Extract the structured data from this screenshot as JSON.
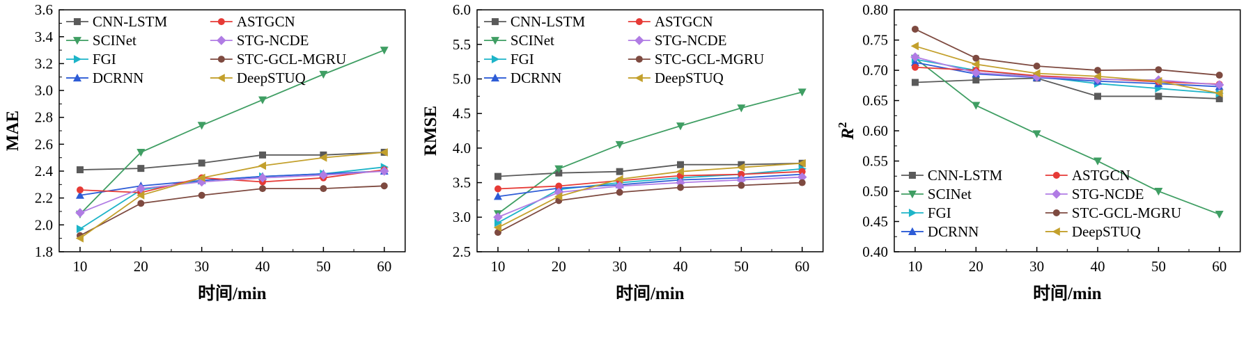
{
  "figure_name": "model-comparison-line-charts",
  "chart_data": [
    {
      "type": "line",
      "ylabel": "MAE",
      "xlabel": "时间/min",
      "x": [
        10,
        20,
        30,
        40,
        50,
        60
      ],
      "ylim": [
        1.8,
        3.6
      ],
      "yticks": [
        "1.8",
        "2.0",
        "2.2",
        "2.4",
        "2.6",
        "2.8",
        "3.0",
        "3.2",
        "3.4",
        "3.6"
      ],
      "grid": false,
      "legend": {
        "position": "top-left",
        "columns": 2
      },
      "series": [
        {
          "name": "CNN-LSTM",
          "color": "#5a5a5a",
          "marker": "square",
          "values": [
            2.41,
            2.42,
            2.46,
            2.52,
            2.52,
            2.54
          ]
        },
        {
          "name": "SCINet",
          "color": "#3f9e63",
          "marker": "triangle-down",
          "values": [
            2.08,
            2.54,
            2.74,
            2.93,
            3.12,
            3.3
          ]
        },
        {
          "name": "FGI",
          "color": "#1db4c8",
          "marker": "triangle-right",
          "values": [
            1.97,
            2.26,
            2.33,
            2.36,
            2.38,
            2.43
          ]
        },
        {
          "name": "DCRNN",
          "color": "#2d5cd6",
          "marker": "triangle-up",
          "values": [
            2.22,
            2.29,
            2.33,
            2.36,
            2.38,
            2.4
          ]
        },
        {
          "name": "ASTGCN",
          "color": "#e63a36",
          "marker": "circle",
          "values": [
            2.26,
            2.24,
            2.35,
            2.32,
            2.35,
            2.41
          ]
        },
        {
          "name": "STG-NCDE",
          "color": "#b07ce4",
          "marker": "diamond",
          "values": [
            2.09,
            2.27,
            2.32,
            2.35,
            2.37,
            2.4
          ]
        },
        {
          "name": "STC-GCL-MGRU",
          "color": "#7e4a40",
          "marker": "circle",
          "values": [
            1.92,
            2.16,
            2.22,
            2.27,
            2.27,
            2.29
          ]
        },
        {
          "name": "DeepSTUQ",
          "color": "#c3a02c",
          "marker": "triangle-left",
          "values": [
            1.9,
            2.22,
            2.35,
            2.44,
            2.5,
            2.54
          ]
        }
      ]
    },
    {
      "type": "line",
      "ylabel": "RMSE",
      "xlabel": "时间/min",
      "x": [
        10,
        20,
        30,
        40,
        50,
        60
      ],
      "ylim": [
        2.5,
        6.0
      ],
      "yticks": [
        "2.5",
        "3.0",
        "3.5",
        "4.0",
        "4.5",
        "5.0",
        "5.5",
        "6.0"
      ],
      "grid": false,
      "legend": {
        "position": "top-left",
        "columns": 2
      },
      "series": [
        {
          "name": "CNN-LSTM",
          "color": "#5a5a5a",
          "marker": "square",
          "values": [
            3.59,
            3.64,
            3.66,
            3.76,
            3.76,
            3.78
          ]
        },
        {
          "name": "SCINet",
          "color": "#3f9e63",
          "marker": "triangle-down",
          "values": [
            3.05,
            3.7,
            4.05,
            4.32,
            4.58,
            4.81
          ]
        },
        {
          "name": "FGI",
          "color": "#1db4c8",
          "marker": "triangle-right",
          "values": [
            2.92,
            3.4,
            3.5,
            3.57,
            3.62,
            3.7
          ]
        },
        {
          "name": "DCRNN",
          "color": "#2d5cd6",
          "marker": "triangle-up",
          "values": [
            3.3,
            3.42,
            3.47,
            3.54,
            3.57,
            3.62
          ]
        },
        {
          "name": "ASTGCN",
          "color": "#e63a36",
          "marker": "circle",
          "values": [
            3.41,
            3.45,
            3.53,
            3.6,
            3.62,
            3.66
          ]
        },
        {
          "name": "STG-NCDE",
          "color": "#b07ce4",
          "marker": "diamond",
          "values": [
            3.0,
            3.36,
            3.45,
            3.5,
            3.54,
            3.58
          ]
        },
        {
          "name": "STC-GCL-MGRU",
          "color": "#7e4a40",
          "marker": "circle",
          "values": [
            2.78,
            3.24,
            3.36,
            3.43,
            3.46,
            3.5
          ]
        },
        {
          "name": "DeepSTUQ",
          "color": "#c3a02c",
          "marker": "triangle-left",
          "values": [
            2.85,
            3.3,
            3.55,
            3.66,
            3.72,
            3.78
          ]
        }
      ]
    },
    {
      "type": "line",
      "ylabel": "R",
      "ylabel_sup": "2",
      "ylabel_italic": true,
      "xlabel": "时间/min",
      "x": [
        10,
        20,
        30,
        40,
        50,
        60
      ],
      "ylim": [
        0.4,
        0.8
      ],
      "yticks": [
        "0.40",
        "0.45",
        "0.50",
        "0.55",
        "0.60",
        "0.65",
        "0.70",
        "0.75",
        "0.80"
      ],
      "grid": false,
      "legend": {
        "position": "bottom-left",
        "columns": 2
      },
      "series": [
        {
          "name": "CNN-LSTM",
          "color": "#5a5a5a",
          "marker": "square",
          "values": [
            0.68,
            0.684,
            0.687,
            0.657,
            0.657,
            0.653
          ]
        },
        {
          "name": "SCINet",
          "color": "#3f9e63",
          "marker": "triangle-down",
          "values": [
            0.72,
            0.642,
            0.595,
            0.55,
            0.5,
            0.462
          ]
        },
        {
          "name": "FGI",
          "color": "#1db4c8",
          "marker": "triangle-right",
          "values": [
            0.718,
            0.7,
            0.69,
            0.678,
            0.67,
            0.662
          ]
        },
        {
          "name": "DCRNN",
          "color": "#2d5cd6",
          "marker": "triangle-up",
          "values": [
            0.713,
            0.694,
            0.688,
            0.682,
            0.678,
            0.673
          ]
        },
        {
          "name": "ASTGCN",
          "color": "#e63a36",
          "marker": "circle",
          "values": [
            0.705,
            0.7,
            0.691,
            0.686,
            0.681,
            0.677
          ]
        },
        {
          "name": "STG-NCDE",
          "color": "#b07ce4",
          "marker": "diamond",
          "values": [
            0.722,
            0.696,
            0.689,
            0.685,
            0.684,
            0.676
          ]
        },
        {
          "name": "STC-GCL-MGRU",
          "color": "#7e4a40",
          "marker": "circle",
          "values": [
            0.768,
            0.72,
            0.707,
            0.7,
            0.701,
            0.692
          ]
        },
        {
          "name": "DeepSTUQ",
          "color": "#c3a02c",
          "marker": "triangle-left",
          "values": [
            0.74,
            0.71,
            0.695,
            0.69,
            0.682,
            0.662
          ]
        }
      ]
    }
  ]
}
